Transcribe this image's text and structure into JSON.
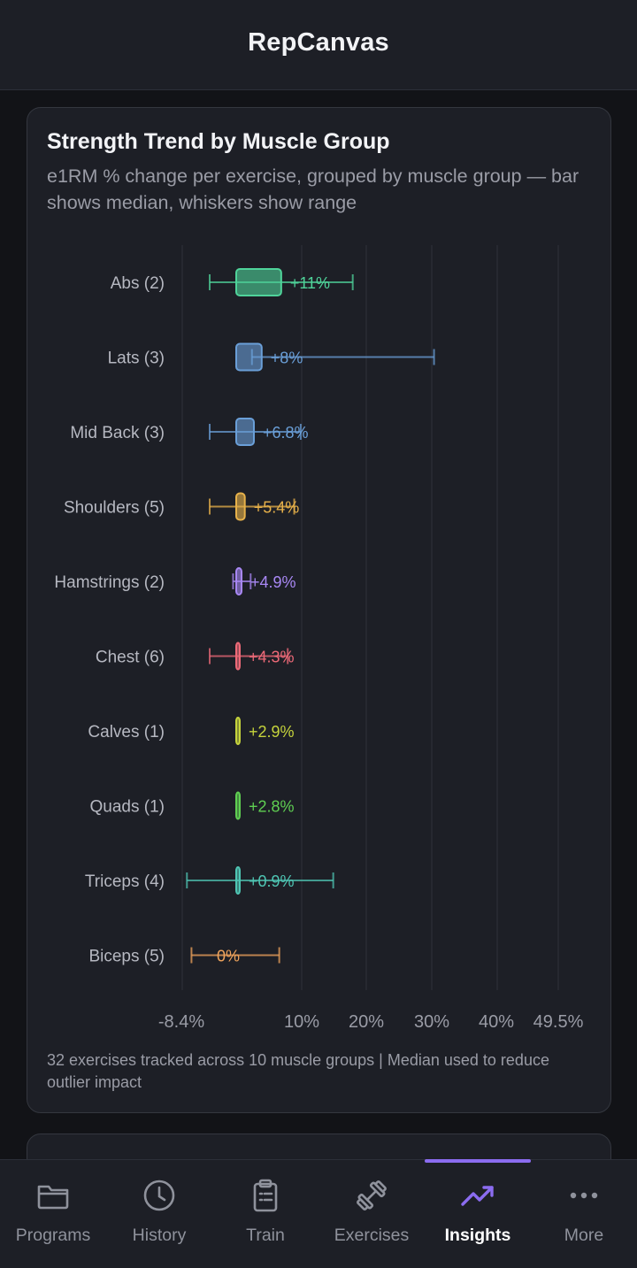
{
  "app": {
    "title": "RepCanvas"
  },
  "card": {
    "title": "Strength Trend by Muscle Group",
    "subtitle": "e1RM % change per exercise, grouped by muscle group — bar shows median, whiskers show range",
    "footer": "32 exercises tracked across 10 muscle groups | Median used to reduce outlier impact"
  },
  "chart_data": {
    "type": "bar",
    "orientation": "horizontal",
    "title": "Strength Trend by Muscle Group",
    "xlim": [
      -8.4,
      49.5
    ],
    "x_ticks": [
      "-8.4%",
      "10%",
      "20%",
      "30%",
      "40%",
      "49.5%"
    ],
    "x_tick_values": [
      -8.4,
      10,
      20,
      30,
      40,
      49.5
    ],
    "grid": true,
    "categories": [
      "Abs (2)",
      "Lats (3)",
      "Mid Back (3)",
      "Shoulders (5)",
      "Hamstrings (2)",
      "Chest (6)",
      "Calves (1)",
      "Quads (1)",
      "Triceps (4)",
      "Biceps (5)"
    ],
    "median": [
      11,
      8,
      6.8,
      5.4,
      4.9,
      4.3,
      2.9,
      2.8,
      0.9,
      0
    ],
    "min": [
      0,
      6.5,
      0,
      0,
      3.6,
      0,
      2.9,
      2.8,
      -3.5,
      -2.8
    ],
    "max": [
      22,
      34.5,
      14,
      13,
      6.3,
      12,
      2.9,
      2.8,
      19,
      10.7
    ],
    "labels": [
      "+11%",
      "+8%",
      "+6.8%",
      "+5.4%",
      "+4.9%",
      "+4.3%",
      "+2.9%",
      "+2.8%",
      "+0.9%",
      "0%"
    ],
    "colors": [
      "#4fd39a",
      "#6a9fd8",
      "#6a9fd8",
      "#e8b24a",
      "#a988f5",
      "#ee6a78",
      "#c6d43c",
      "#5fcf52",
      "#4fc6b4",
      "#f0a45c"
    ]
  },
  "tabs": [
    {
      "label": "Programs",
      "icon": "folder-icon",
      "active": false
    },
    {
      "label": "History",
      "icon": "clock-icon",
      "active": false
    },
    {
      "label": "Train",
      "icon": "clipboard-icon",
      "active": false
    },
    {
      "label": "Exercises",
      "icon": "dumbbell-icon",
      "active": false
    },
    {
      "label": "Insights",
      "icon": "trend-up-icon",
      "active": true
    },
    {
      "label": "More",
      "icon": "more-icon",
      "active": false
    }
  ],
  "theme": {
    "accent": "#8b6cf0",
    "background": "#121317",
    "surface": "#1d1f26"
  }
}
